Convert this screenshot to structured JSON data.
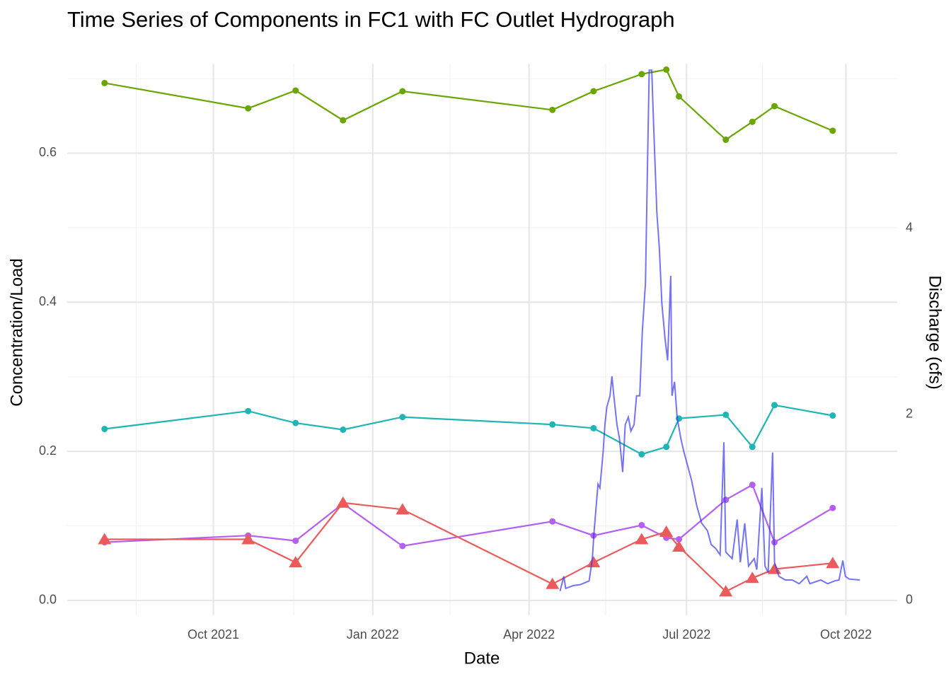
{
  "chart_data": {
    "type": "line",
    "title": "Time Series of Components in FC1 with FC Outlet Hydrograph",
    "xlabel": "Date",
    "ylabel": "Concentration/Load",
    "y2label": "Discharge (cfs)",
    "xlim": [
      2021.517,
      2022.829
    ],
    "xticks": [
      {
        "value": 2021.748,
        "label": "Oct 2021"
      },
      {
        "value": 2022.0,
        "label": "Jan 2022"
      },
      {
        "value": 2022.247,
        "label": "Apr 2022"
      },
      {
        "value": 2022.496,
        "label": "Jul 2022"
      },
      {
        "value": 2022.748,
        "label": "Oct 2022"
      }
    ],
    "xticks_minor": [
      2021.626,
      2021.875,
      2022.122,
      2022.368,
      2022.616
    ],
    "ylim": [
      -0.02,
      0.72
    ],
    "yticks": [
      {
        "value": 0,
        "label": "0.0"
      },
      0.2,
      0.4,
      0.6
    ],
    "yticks_minor": [
      0.1,
      0.3,
      0.5,
      0.7
    ],
    "y2lim": [
      -0.16,
      5.77
    ],
    "y2ticks": [
      0,
      2,
      4
    ],
    "grid": true,
    "x": [
      2021.576,
      2021.803,
      2021.878,
      2021.953,
      2022.047,
      2022.284,
      2022.349,
      2022.425,
      2022.464,
      2022.484,
      2022.558,
      2022.6,
      2022.635,
      2022.727
    ],
    "series": [
      {
        "color": "#6aa500",
        "marker": "circle",
        "values": [
          0.694,
          0.66,
          0.684,
          0.644,
          0.683,
          0.658,
          0.683,
          0.706,
          0.712,
          0.676,
          0.618,
          0.642,
          0.663,
          0.63
        ]
      },
      {
        "color": "#1fb5b5",
        "marker": "circle",
        "values": [
          0.23,
          0.254,
          0.238,
          0.229,
          0.246,
          0.236,
          0.231,
          0.196,
          0.206,
          0.244,
          0.249,
          0.206,
          0.262,
          0.248
        ]
      },
      {
        "color": "#b45ff2",
        "marker": "circle",
        "values": [
          0.078,
          0.087,
          0.08,
          0.13,
          0.073,
          0.106,
          0.087,
          0.101,
          0.084,
          0.082,
          0.135,
          0.155,
          0.078,
          0.124
        ]
      },
      {
        "color": "#ec5b5b",
        "marker": "triangle",
        "values": [
          0.082,
          0.082,
          0.051,
          0.131,
          0.122,
          0.022,
          0.051,
          0.082,
          0.092,
          0.072,
          0.012,
          0.03,
          0.042,
          0.05
        ]
      },
      {
        "color": "#3737f0",
        "axis": "y2",
        "x": [
          2022.296,
          2022.302,
          2022.305,
          2022.317,
          2022.328,
          2022.342,
          2022.347,
          2022.35,
          2022.356,
          2022.359,
          2022.364,
          2022.367,
          2022.37,
          2022.375,
          2022.378,
          2022.381,
          2022.386,
          2022.39,
          2022.395,
          2022.399,
          2022.404,
          2022.408,
          2022.413,
          2022.417,
          2022.422,
          2022.426,
          2022.431,
          2022.434,
          2022.437,
          2022.441,
          2022.444,
          2022.449,
          2022.453,
          2022.457,
          2022.462,
          2022.466,
          2022.471,
          2022.473,
          2022.477,
          2022.481,
          2022.487,
          2022.492,
          2022.498,
          2022.504,
          2022.512,
          2022.52,
          2022.529,
          2022.535,
          2022.542,
          2022.549,
          2022.555,
          2022.558,
          2022.568,
          2022.576,
          2022.581,
          2022.588,
          2022.594,
          2022.603,
          2022.607,
          2022.615,
          2022.62,
          2022.625,
          2022.632,
          2022.635,
          2022.642,
          2022.652,
          2022.663,
          2022.674,
          2022.686,
          2022.691,
          2022.708,
          2022.719,
          2022.73,
          2022.737,
          2022.743,
          2022.747,
          2022.753,
          2022.77
        ],
        "values": [
          0.1,
          0.26,
          0.13,
          0.16,
          0.17,
          0.21,
          0.45,
          0.75,
          1.25,
          1.21,
          1.59,
          1.89,
          2.08,
          2.2,
          2.41,
          2.2,
          1.89,
          1.74,
          1.38,
          1.89,
          1.97,
          1.82,
          1.89,
          2.2,
          2.2,
          2.88,
          3.41,
          4.56,
          5.7,
          5.7,
          5.09,
          4.17,
          3.79,
          3.19,
          2.81,
          2.58,
          3.49,
          2.2,
          2.35,
          1.97,
          1.74,
          1.59,
          1.44,
          1.29,
          1.02,
          0.83,
          0.75,
          0.6,
          0.56,
          0.49,
          1.7,
          0.52,
          0.45,
          0.87,
          0.41,
          0.83,
          0.37,
          0.45,
          0.33,
          1.21,
          0.37,
          0.3,
          1.59,
          0.41,
          0.26,
          0.22,
          0.22,
          0.18,
          0.26,
          0.18,
          0.22,
          0.18,
          0.21,
          0.22,
          0.43,
          0.26,
          0.23,
          0.22
        ]
      }
    ]
  }
}
